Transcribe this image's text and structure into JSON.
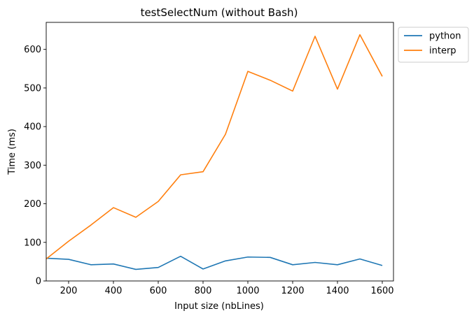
{
  "chart_data": {
    "type": "line",
    "title": "testSelectNum (without Bash)",
    "xlabel": "Input size (nbLines)",
    "ylabel": "Time (ms)",
    "xlim": [
      100,
      1650
    ],
    "ylim": [
      0,
      670
    ],
    "xticks": [
      200,
      400,
      600,
      800,
      1000,
      1200,
      1400,
      1600
    ],
    "yticks": [
      0,
      100,
      200,
      300,
      400,
      500,
      600
    ],
    "grid": false,
    "legend_position": "outside-top-right",
    "x": [
      100,
      200,
      300,
      400,
      500,
      600,
      700,
      800,
      900,
      1000,
      1100,
      1200,
      1300,
      1400,
      1500,
      1600
    ],
    "series": [
      {
        "name": "python",
        "color": "#1f77b4",
        "values": [
          59,
          56,
          42,
          44,
          30,
          35,
          64,
          31,
          52,
          62,
          61,
          42,
          48,
          42,
          57,
          40
        ]
      },
      {
        "name": "interp",
        "color": "#ff7f0e",
        "values": [
          57,
          103,
          145,
          190,
          165,
          206,
          275,
          283,
          380,
          543,
          520,
          492,
          634,
          497,
          638,
          530
        ]
      }
    ]
  }
}
